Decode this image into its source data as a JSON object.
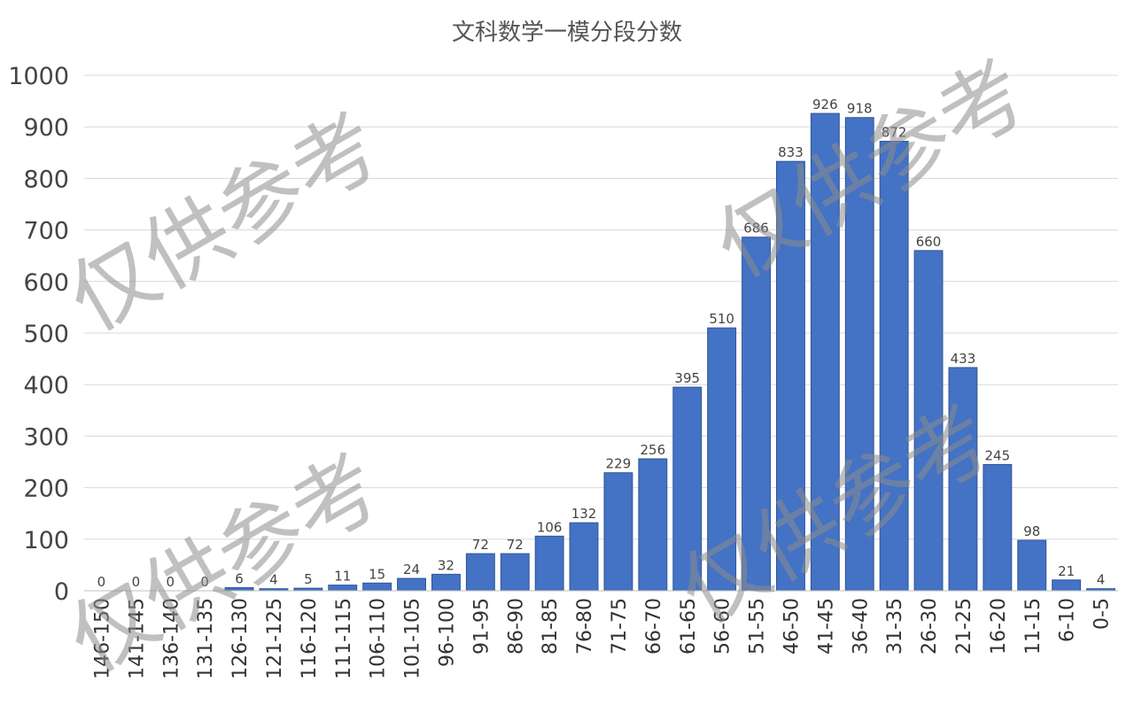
{
  "chart_data": {
    "type": "bar",
    "title": "文科数学一模分段分数",
    "xlabel": "",
    "ylabel": "",
    "ylim": [
      0,
      1000
    ],
    "yticks": [
      0,
      100,
      200,
      300,
      400,
      500,
      600,
      700,
      800,
      900,
      1000
    ],
    "grid": true,
    "legend": "none",
    "bar_color": "#4472C4",
    "categories": [
      "146-150",
      "141-145",
      "136-140",
      "131-135",
      "126-130",
      "121-125",
      "116-120",
      "111-115",
      "106-110",
      "101-105",
      "96-100",
      "91-95",
      "86-90",
      "81-85",
      "76-80",
      "71-75",
      "66-70",
      "61-65",
      "56-60",
      "51-55",
      "46-50",
      "41-45",
      "36-40",
      "31-35",
      "26-30",
      "21-25",
      "16-20",
      "11-15",
      "6-10",
      "0-5"
    ],
    "values": [
      0,
      0,
      0,
      0,
      6,
      4,
      5,
      11,
      15,
      24,
      32,
      72,
      72,
      106,
      132,
      229,
      256,
      395,
      510,
      686,
      833,
      926,
      918,
      872,
      660,
      433,
      245,
      98,
      21,
      4
    ]
  },
  "watermark": {
    "text": "仅供参考",
    "color": "#8c8c8c"
  }
}
